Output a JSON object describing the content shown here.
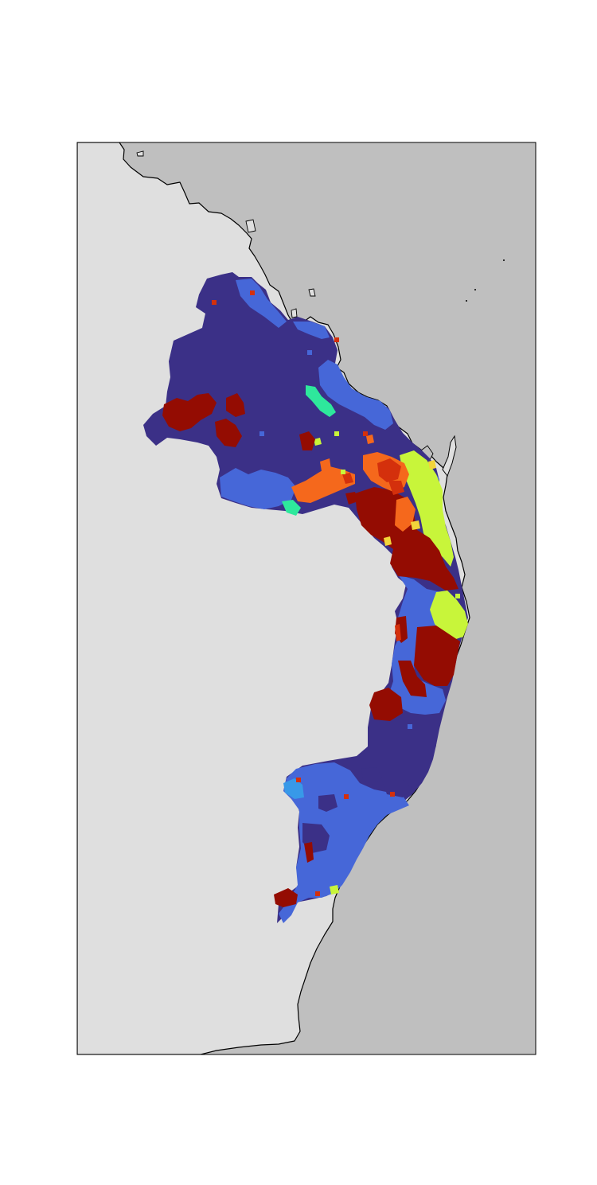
{
  "map": {
    "ocean_color": "#bfbfbf",
    "land_color": "#dfdfdf",
    "coastline_color": "#000000",
    "frame_color": "#000000",
    "classes": [
      {
        "id": "c1",
        "color": "#3b3087"
      },
      {
        "id": "c2",
        "color": "#4667d8"
      },
      {
        "id": "c3",
        "color": "#3899e8"
      },
      {
        "id": "c4",
        "color": "#2ee89c"
      },
      {
        "id": "c5",
        "color": "#c8f53a"
      },
      {
        "id": "c6",
        "color": "#f2d43a"
      },
      {
        "id": "c7",
        "color": "#f5681c"
      },
      {
        "id": "c8",
        "color": "#d4300c"
      },
      {
        "id": "c9",
        "color": "#940c02"
      }
    ]
  }
}
